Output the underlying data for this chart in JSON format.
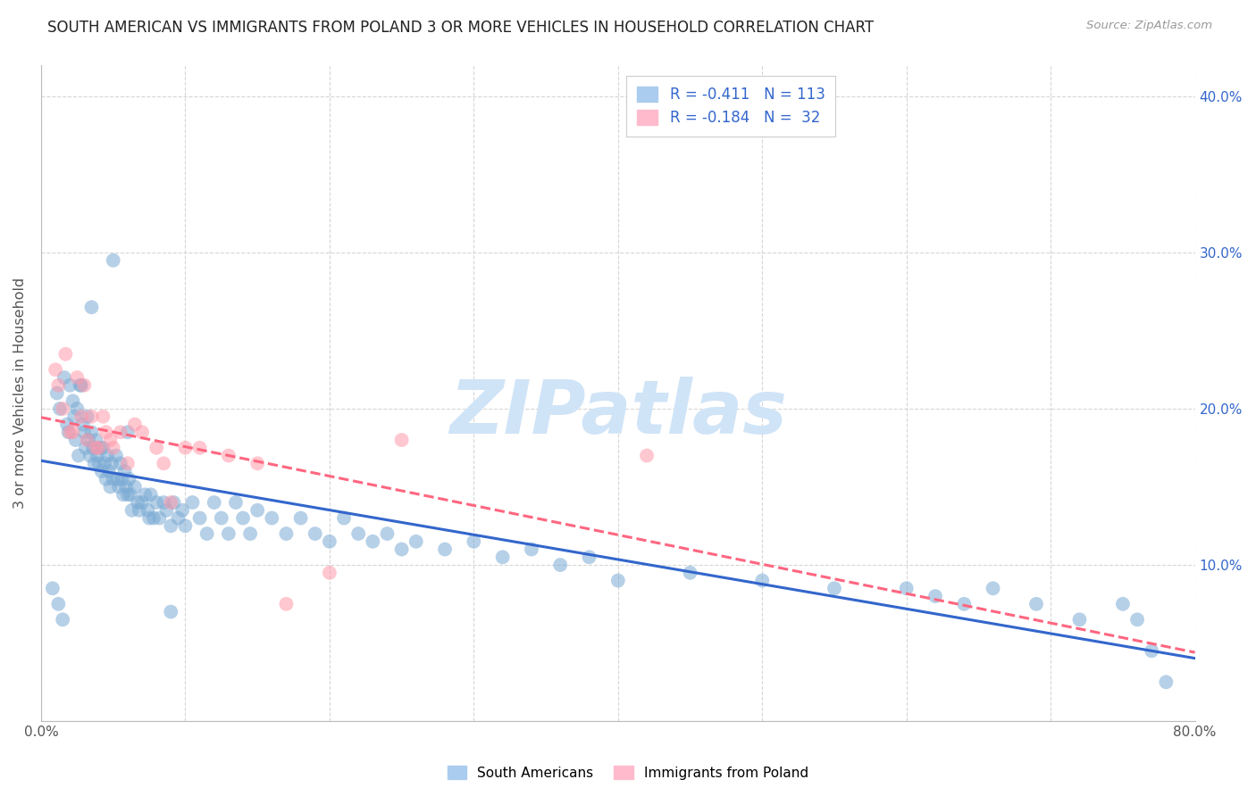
{
  "title": "SOUTH AMERICAN VS IMMIGRANTS FROM POLAND 3 OR MORE VEHICLES IN HOUSEHOLD CORRELATION CHART",
  "source": "Source: ZipAtlas.com",
  "ylabel": "3 or more Vehicles in Household",
  "xmin": 0.0,
  "xmax": 0.8,
  "ymin": 0.0,
  "ymax": 0.42,
  "series1_color": "#7aaad4",
  "series2_color": "#ff99aa",
  "trendline1_color": "#3366cc",
  "trendline2_color": "#ff6680",
  "watermark": "ZIPatlas",
  "watermark_color": "#d0e4f7",
  "legend1_r": "R = -0.411",
  "legend1_n": "N = 113",
  "legend2_r": "R = -0.184",
  "legend2_n": "N =  32",
  "bottom_label1": "South Americans",
  "bottom_label2": "Immigrants from Poland",
  "south_americans_x": [
    0.011,
    0.013,
    0.016,
    0.018,
    0.02,
    0.022,
    0.023,
    0.024,
    0.025,
    0.026,
    0.028,
    0.029,
    0.03,
    0.031,
    0.032,
    0.033,
    0.034,
    0.035,
    0.036,
    0.037,
    0.038,
    0.039,
    0.04,
    0.041,
    0.042,
    0.043,
    0.044,
    0.045,
    0.046,
    0.047,
    0.048,
    0.049,
    0.05,
    0.052,
    0.053,
    0.054,
    0.055,
    0.056,
    0.057,
    0.058,
    0.059,
    0.06,
    0.061,
    0.062,
    0.063,
    0.065,
    0.067,
    0.068,
    0.07,
    0.072,
    0.074,
    0.075,
    0.076,
    0.078,
    0.08,
    0.082,
    0.085,
    0.087,
    0.09,
    0.092,
    0.095,
    0.098,
    0.1,
    0.105,
    0.11,
    0.115,
    0.12,
    0.125,
    0.13,
    0.135,
    0.14,
    0.145,
    0.15,
    0.16,
    0.17,
    0.18,
    0.19,
    0.2,
    0.21,
    0.22,
    0.23,
    0.24,
    0.25,
    0.26,
    0.28,
    0.3,
    0.32,
    0.34,
    0.36,
    0.38,
    0.4,
    0.45,
    0.5,
    0.55,
    0.6,
    0.62,
    0.64,
    0.66,
    0.69,
    0.72,
    0.75,
    0.76,
    0.77,
    0.78,
    0.008,
    0.012,
    0.015,
    0.019,
    0.027,
    0.035,
    0.05,
    0.06,
    0.09
  ],
  "south_americans_y": [
    0.21,
    0.2,
    0.22,
    0.19,
    0.215,
    0.205,
    0.195,
    0.18,
    0.2,
    0.17,
    0.215,
    0.19,
    0.185,
    0.175,
    0.195,
    0.18,
    0.17,
    0.185,
    0.175,
    0.165,
    0.18,
    0.17,
    0.165,
    0.175,
    0.16,
    0.175,
    0.165,
    0.155,
    0.17,
    0.16,
    0.15,
    0.165,
    0.155,
    0.17,
    0.155,
    0.15,
    0.165,
    0.155,
    0.145,
    0.16,
    0.15,
    0.145,
    0.155,
    0.145,
    0.135,
    0.15,
    0.14,
    0.135,
    0.14,
    0.145,
    0.135,
    0.13,
    0.145,
    0.13,
    0.14,
    0.13,
    0.14,
    0.135,
    0.125,
    0.14,
    0.13,
    0.135,
    0.125,
    0.14,
    0.13,
    0.12,
    0.14,
    0.13,
    0.12,
    0.14,
    0.13,
    0.12,
    0.135,
    0.13,
    0.12,
    0.13,
    0.12,
    0.115,
    0.13,
    0.12,
    0.115,
    0.12,
    0.11,
    0.115,
    0.11,
    0.115,
    0.105,
    0.11,
    0.1,
    0.105,
    0.09,
    0.095,
    0.09,
    0.085,
    0.085,
    0.08,
    0.075,
    0.085,
    0.075,
    0.065,
    0.075,
    0.065,
    0.045,
    0.025,
    0.085,
    0.075,
    0.065,
    0.185,
    0.215,
    0.265,
    0.295,
    0.185,
    0.07
  ],
  "poland_x": [
    0.01,
    0.012,
    0.015,
    0.017,
    0.02,
    0.022,
    0.025,
    0.028,
    0.03,
    0.032,
    0.035,
    0.038,
    0.04,
    0.043,
    0.045,
    0.048,
    0.05,
    0.055,
    0.06,
    0.065,
    0.07,
    0.08,
    0.085,
    0.09,
    0.1,
    0.11,
    0.13,
    0.15,
    0.17,
    0.2,
    0.25,
    0.42
  ],
  "poland_y": [
    0.225,
    0.215,
    0.2,
    0.235,
    0.185,
    0.185,
    0.22,
    0.195,
    0.215,
    0.18,
    0.195,
    0.175,
    0.175,
    0.195,
    0.185,
    0.18,
    0.175,
    0.185,
    0.165,
    0.19,
    0.185,
    0.175,
    0.165,
    0.14,
    0.175,
    0.175,
    0.17,
    0.165,
    0.075,
    0.095,
    0.18,
    0.17
  ]
}
